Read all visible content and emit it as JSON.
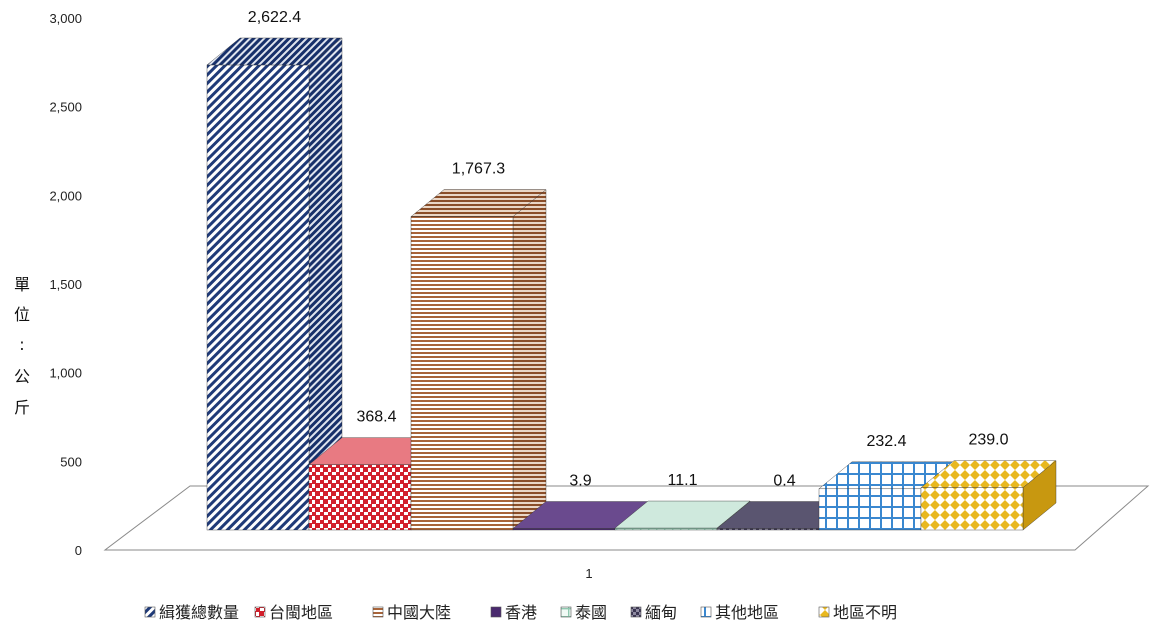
{
  "chart_data": {
    "type": "bar",
    "categories": [
      "1"
    ],
    "series": [
      {
        "name": "緝獲總數量",
        "values": [
          2622.4
        ],
        "label": "2,622.4",
        "color": "#1f3a78",
        "pattern": "diag"
      },
      {
        "name": "台閩地區",
        "values": [
          368.4
        ],
        "label": "368.4",
        "color": "#d21f2b",
        "pattern": "check"
      },
      {
        "name": "中國大陸",
        "values": [
          1767.3
        ],
        "label": "1,767.3",
        "color": "#a8643a",
        "pattern": "hstripe"
      },
      {
        "name": "香港",
        "values": [
          3.9
        ],
        "label": "3.9",
        "color": "#4a2a6e",
        "pattern": "solid"
      },
      {
        "name": "泰國",
        "values": [
          11.1
        ],
        "label": "11.1",
        "color": "#8fc8b0",
        "pattern": "grid"
      },
      {
        "name": "緬甸",
        "values": [
          0.4
        ],
        "label": "0.4",
        "color": "#3a3550",
        "pattern": "check"
      },
      {
        "name": "其他地區",
        "values": [
          232.4
        ],
        "label": "232.4",
        "color": "#3a88d0",
        "pattern": "grid"
      },
      {
        "name": "地區不明",
        "values": [
          239.0
        ],
        "label": "239.0",
        "color": "#e8b820",
        "pattern": "diamond"
      }
    ],
    "ylabel": "單位:公斤",
    "yticks": [
      "0",
      "500",
      "1,000",
      "1,500",
      "2,000",
      "2,500",
      "3,000"
    ],
    "ylim": [
      0,
      3000
    ],
    "grid": false,
    "legend_position": "bottom",
    "projection": "3d"
  },
  "axis": {
    "ylabel_chars": [
      "單",
      "位",
      ":",
      "公",
      "斤"
    ],
    "xtick": "1"
  }
}
